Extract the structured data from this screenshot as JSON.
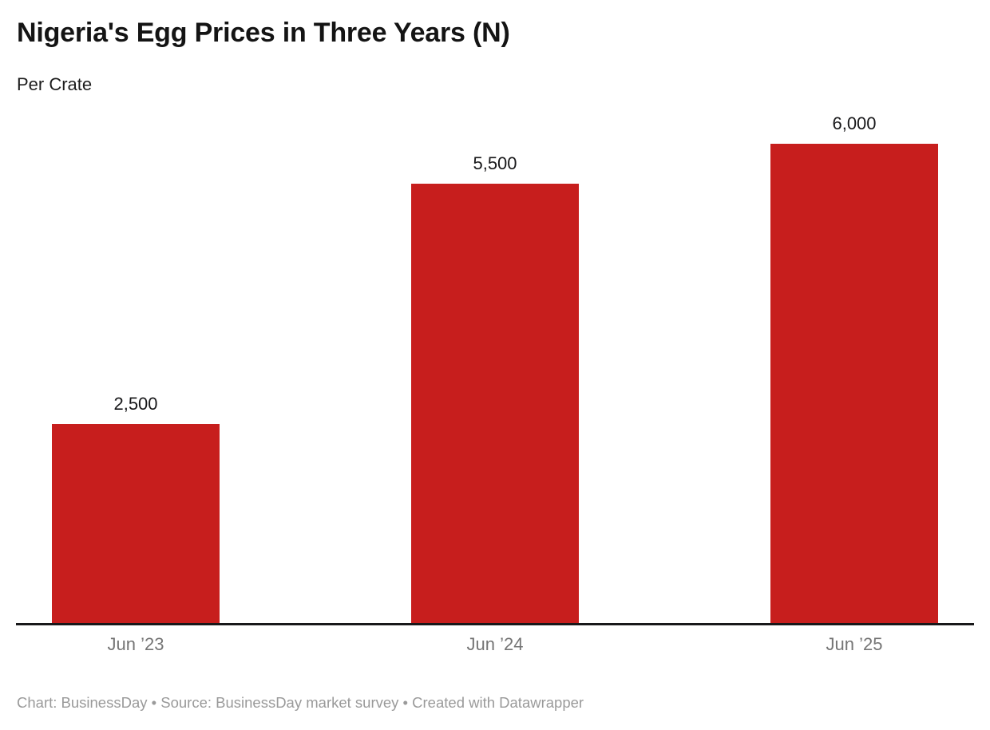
{
  "header": {
    "title": "Nigeria's Egg Prices in Three Years (N)",
    "subtitle": "Per Crate"
  },
  "chart_data": {
    "type": "bar",
    "title": "Nigeria's Egg Prices in Three Years (N)",
    "subtitle": "Per Crate",
    "categories": [
      "Jun ’23",
      "Jun ’24",
      "Jun ’25"
    ],
    "values": [
      2500,
      5500,
      6000
    ],
    "value_labels": [
      "2,500",
      "5,500",
      "6,000"
    ],
    "xlabel": "",
    "ylabel": "",
    "ylim": [
      0,
      6000
    ],
    "grid": false,
    "legend_position": "none",
    "bar_color": "#c71e1d",
    "axis_line_color": "#18181a",
    "value_label_color": "#18181a",
    "tick_label_color": "#757575"
  },
  "footer": {
    "text": "Chart: BusinessDay • Source: BusinessDay market survey • Created with Datawrapper"
  }
}
